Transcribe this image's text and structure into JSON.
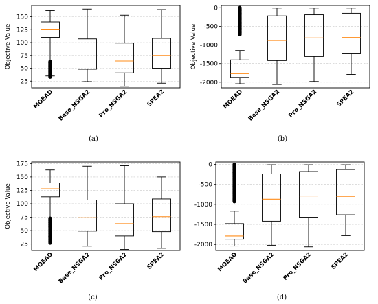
{
  "chart_data": [
    {
      "type": "boxplot",
      "caption": "(a)",
      "ylabel": "Objective Value",
      "categories": [
        "MOEAD",
        "Base_NSGA2",
        "Pro_NSGA2",
        "SPEA2"
      ],
      "ylim": [
        12,
        172
      ],
      "yticks": [
        25,
        50,
        75,
        100,
        125,
        150
      ],
      "grid": true,
      "boxes": [
        {
          "whislo": 35,
          "q1": 110,
          "med": 126,
          "q3": 140,
          "whishi": 162,
          "fliers_range": [
            33,
            63
          ]
        },
        {
          "whislo": 24,
          "q1": 48,
          "med": 74,
          "q3": 107,
          "whishi": 165,
          "fliers_range": null
        },
        {
          "whislo": 15,
          "q1": 41,
          "med": 64,
          "q3": 99,
          "whishi": 153,
          "fliers_range": null
        },
        {
          "whislo": 21,
          "q1": 50,
          "med": 75,
          "q3": 108,
          "whishi": 164,
          "fliers_range": null
        }
      ]
    },
    {
      "type": "boxplot",
      "caption": "(b)",
      "ylabel": "Objective Value",
      "categories": [
        "MOEAD",
        "Base_NSGA2",
        "Pro_NSGA2",
        "SPEA2"
      ],
      "ylim": [
        -2150,
        60
      ],
      "yticks": [
        -2000,
        -1500,
        -1000,
        -500,
        0
      ],
      "grid": true,
      "boxes": [
        {
          "whislo": -2040,
          "q1": -1870,
          "med": -1770,
          "q3": -1400,
          "whishi": -1150,
          "fliers_range": [
            -720,
            0
          ]
        },
        {
          "whislo": -2060,
          "q1": -1420,
          "med": -880,
          "q3": -220,
          "whishi": -10,
          "fliers_range": null
        },
        {
          "whislo": -1980,
          "q1": -1310,
          "med": -810,
          "q3": -190,
          "whishi": -10,
          "fliers_range": null
        },
        {
          "whislo": -1790,
          "q1": -1220,
          "med": -800,
          "q3": -150,
          "whishi": -10,
          "fliers_range": null
        }
      ]
    },
    {
      "type": "boxplot",
      "caption": "(c)",
      "ylabel": "Objective Value",
      "categories": [
        "MOEAD",
        "Base_NSGA2",
        "Pro_NSGA2",
        "SPEA2"
      ],
      "ylim": [
        13,
        178
      ],
      "yticks": [
        25,
        50,
        75,
        100,
        125,
        150,
        175
      ],
      "grid": true,
      "boxes": [
        {
          "whislo": 29,
          "q1": 113,
          "med": 128,
          "q3": 139,
          "whishi": 163,
          "fliers_range": [
            27,
            73
          ]
        },
        {
          "whislo": 21,
          "q1": 49,
          "med": 74,
          "q3": 107,
          "whishi": 170,
          "fliers_range": null
        },
        {
          "whislo": 15,
          "q1": 40,
          "med": 63,
          "q3": 100,
          "whishi": 171,
          "fliers_range": null
        },
        {
          "whislo": 17,
          "q1": 48,
          "med": 76,
          "q3": 109,
          "whishi": 150,
          "fliers_range": null
        }
      ]
    },
    {
      "type": "boxplot",
      "caption": "(d)",
      "ylabel": "",
      "categories": [
        "MOEAD",
        "Base_NSGA2",
        "Pro_NSGA2",
        "SPEA2"
      ],
      "ylim": [
        -2150,
        60
      ],
      "yticks": [
        -2000,
        -1500,
        -1000,
        -500,
        0
      ],
      "grid": true,
      "boxes": [
        {
          "whislo": -2040,
          "q1": -1870,
          "med": -1790,
          "q3": -1480,
          "whishi": -1170,
          "fliers_range": [
            -930,
            0
          ]
        },
        {
          "whislo": -2020,
          "q1": -1420,
          "med": -870,
          "q3": -240,
          "whishi": -10,
          "fliers_range": null
        },
        {
          "whislo": -2060,
          "q1": -1320,
          "med": -790,
          "q3": -180,
          "whishi": -10,
          "fliers_range": null
        },
        {
          "whislo": -1780,
          "q1": -1260,
          "med": -800,
          "q3": -130,
          "whishi": -10,
          "fliers_range": null
        }
      ]
    }
  ],
  "colors": {
    "median": "#ff8c1a",
    "box": "#000000",
    "grid": "#c8c8c8"
  }
}
